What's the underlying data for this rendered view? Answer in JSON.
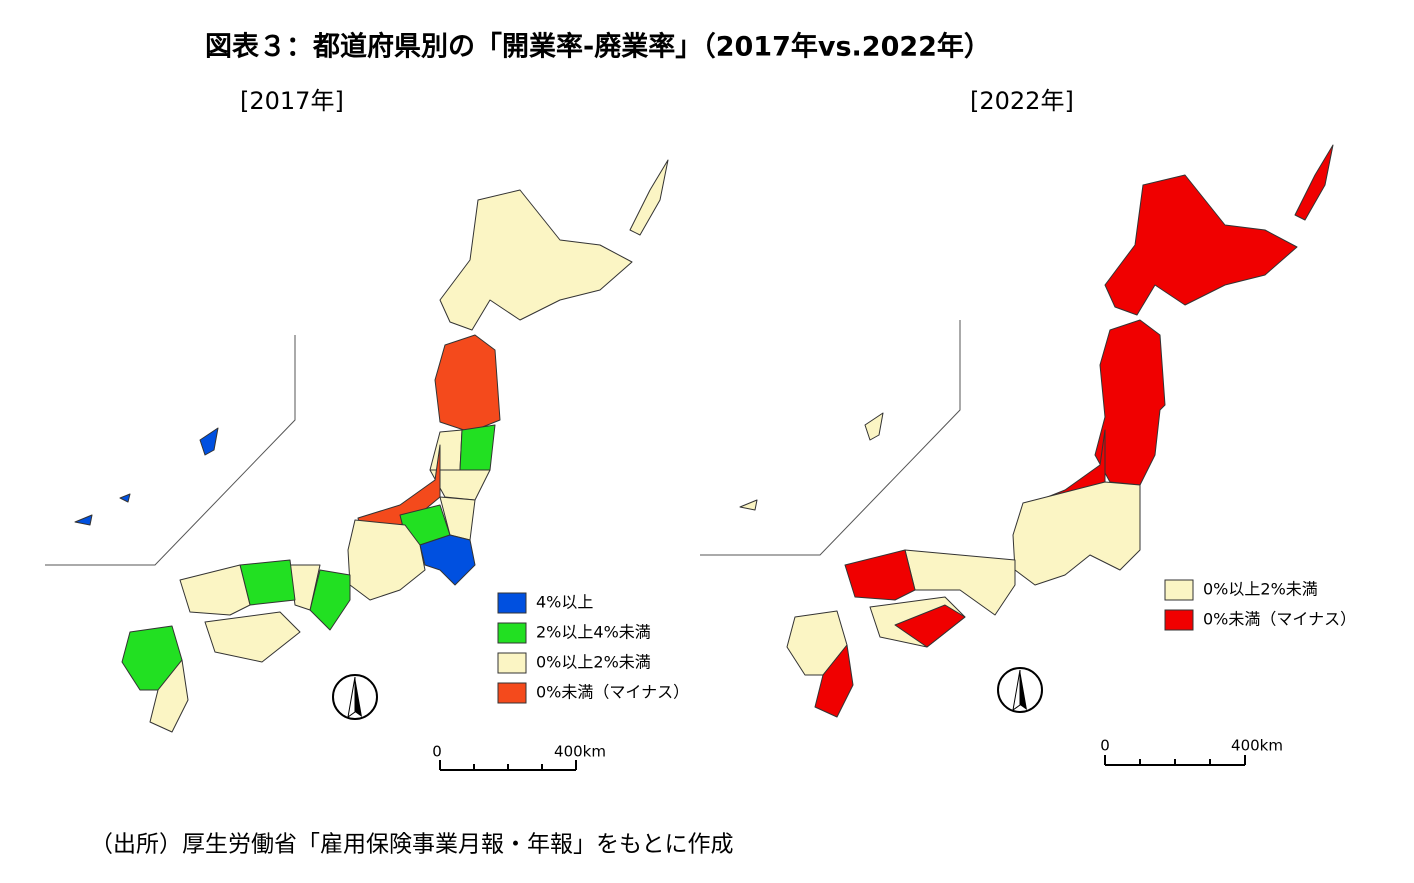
{
  "title": "図表３：都道府県別の「開業率-廃業率」（2017年vs.2022年）",
  "maps": [
    {
      "subtitle": "[2017年]",
      "legend": [
        {
          "label": "4%以上",
          "color": "#0050e0"
        },
        {
          "label": "2%以上4%未満",
          "color": "#22e022"
        },
        {
          "label": "0%以上2%未満",
          "color": "#fbf5c4"
        },
        {
          "label": "0%未満（マイナス）",
          "color": "#f44a1c"
        }
      ],
      "scale": {
        "start": "0",
        "end": "400km"
      }
    },
    {
      "subtitle": "[2022年]",
      "legend": [
        {
          "label": "0%以上2%未満",
          "color": "#fbf5c4"
        },
        {
          "label": "0%未満（マイナス）",
          "color": "#f00000"
        }
      ],
      "scale": {
        "start": "0",
        "end": "400km"
      }
    }
  ],
  "source": "（出所）厚生労働省「雇用保険事業月報・年報」をもとに作成"
}
